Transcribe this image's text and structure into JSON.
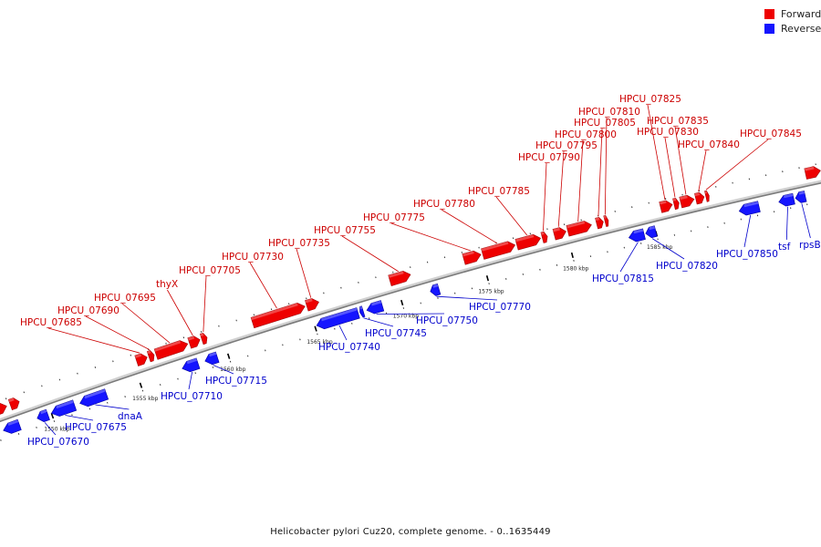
{
  "legend": {
    "forward_label": "Forward",
    "reverse_label": "Reverse",
    "forward_color": "#ee0000",
    "reverse_color": "#1515ff"
  },
  "caption": "Helicobacter pylori Cuz20, complete genome. - 0..1635449",
  "colors": {
    "forward": "#ee0000",
    "reverse": "#1515ff",
    "backbone": "#888888",
    "label_forward": "#cc0000",
    "label_reverse": "#0000cc"
  },
  "kbp_ticks": [
    {
      "kbp": 1550,
      "label": "1550 kbp"
    },
    {
      "kbp": 1555,
      "label": "1555 kbp"
    },
    {
      "kbp": 1560,
      "label": "1560 kbp"
    },
    {
      "kbp": 1565,
      "label": "1565 kbp"
    },
    {
      "kbp": 1570,
      "label": "1570 kbp"
    },
    {
      "kbp": 1575,
      "label": "1575 kbp"
    },
    {
      "kbp": 1580,
      "label": "1580 kbp"
    },
    {
      "kbp": 1585,
      "label": "1585 kbp"
    }
  ],
  "genes": [
    {
      "name": "",
      "strand": "reverse",
      "start": 1547.3,
      "end": 1548.2
    },
    {
      "name": "",
      "strand": "forward",
      "start": 1547.2,
      "end": 1547.9
    },
    {
      "name": "",
      "strand": "forward",
      "start": 1548.1,
      "end": 1548.6
    },
    {
      "name": "HPCU_07670",
      "strand": "reverse",
      "start": 1549.2,
      "end": 1549.8
    },
    {
      "name": "HPCU_07675",
      "strand": "reverse",
      "start": 1550.0,
      "end": 1551.3
    },
    {
      "name": "dnaA",
      "strand": "reverse",
      "start": 1551.6,
      "end": 1553.1
    },
    {
      "name": "HPCU_07685",
      "strand": "forward",
      "start": 1555.2,
      "end": 1555.8
    },
    {
      "name": "HPCU_07690",
      "strand": "forward",
      "start": 1555.9,
      "end": 1556.2
    },
    {
      "name": "HPCU_07695",
      "strand": "forward",
      "start": 1556.3,
      "end": 1558.1
    },
    {
      "name": "thyX",
      "strand": "forward",
      "start": 1558.2,
      "end": 1558.8
    },
    {
      "name": "",
      "strand": "forward",
      "start": 1558.9,
      "end": 1559.2
    },
    {
      "name": "HPCU_07710",
      "strand": "reverse",
      "start": 1557.4,
      "end": 1558.3
    },
    {
      "name": "HPCU_07715",
      "strand": "reverse",
      "start": 1558.7,
      "end": 1559.4
    },
    {
      "name": "HPCU_07730",
      "strand": "forward",
      "start": 1561.8,
      "end": 1564.8
    },
    {
      "name": "HPCU_07735",
      "strand": "forward",
      "start": 1564.9,
      "end": 1565.6
    },
    {
      "name": "HPCU_07740",
      "strand": "reverse",
      "start": 1565.1,
      "end": 1567.5
    },
    {
      "name": "HPCU_07745",
      "strand": "reverse",
      "start": 1567.6,
      "end": 1567.8
    },
    {
      "name": "HPCU_07750",
      "strand": "reverse",
      "start": 1568.0,
      "end": 1568.9
    },
    {
      "name": "HPCU_07755",
      "strand": "forward",
      "start": 1569.7,
      "end": 1570.9
    },
    {
      "name": "HPCU_07770",
      "strand": "reverse",
      "start": 1571.7,
      "end": 1572.2
    },
    {
      "name": "HPCU_07775",
      "strand": "forward",
      "start": 1574.0,
      "end": 1575.0
    },
    {
      "name": "HPCU_07780",
      "strand": "forward",
      "start": 1575.1,
      "end": 1577.0
    },
    {
      "name": "HPCU_07785",
      "strand": "forward",
      "start": 1577.1,
      "end": 1578.5
    },
    {
      "name": "HPCU_07790",
      "strand": "forward",
      "start": 1578.6,
      "end": 1578.9
    },
    {
      "name": "HPCU_07795",
      "strand": "forward",
      "start": 1579.3,
      "end": 1580.0
    },
    {
      "name": "HPCU_07800",
      "strand": "forward",
      "start": 1580.1,
      "end": 1581.5
    },
    {
      "name": "HPCU_07805",
      "strand": "forward",
      "start": 1581.8,
      "end": 1582.2
    },
    {
      "name": "HPCU_07810",
      "strand": "forward",
      "start": 1582.3,
      "end": 1582.5
    },
    {
      "name": "HPCU_07815",
      "strand": "reverse",
      "start": 1583.4,
      "end": 1584.3
    },
    {
      "name": "HPCU_07820",
      "strand": "reverse",
      "start": 1584.4,
      "end": 1585.0
    },
    {
      "name": "HPCU_07825",
      "strand": "forward",
      "start": 1585.6,
      "end": 1586.3
    },
    {
      "name": "HPCU_07830",
      "strand": "forward",
      "start": 1586.4,
      "end": 1586.7
    },
    {
      "name": "HPCU_07835",
      "strand": "forward",
      "start": 1586.8,
      "end": 1587.6
    },
    {
      "name": "HPCU_07840",
      "strand": "forward",
      "start": 1587.7,
      "end": 1588.2
    },
    {
      "name": "HPCU_07845",
      "strand": "forward",
      "start": 1588.3,
      "end": 1588.5
    },
    {
      "name": "HPCU_07850",
      "strand": "reverse",
      "start": 1590.0,
      "end": 1591.2
    },
    {
      "name": "tsf",
      "strand": "reverse",
      "start": 1592.4,
      "end": 1593.3
    },
    {
      "name": "rpsB",
      "strand": "reverse",
      "start": 1593.4,
      "end": 1594.0
    },
    {
      "name": "",
      "strand": "forward",
      "start": 1594.3,
      "end": 1595.2
    }
  ]
}
